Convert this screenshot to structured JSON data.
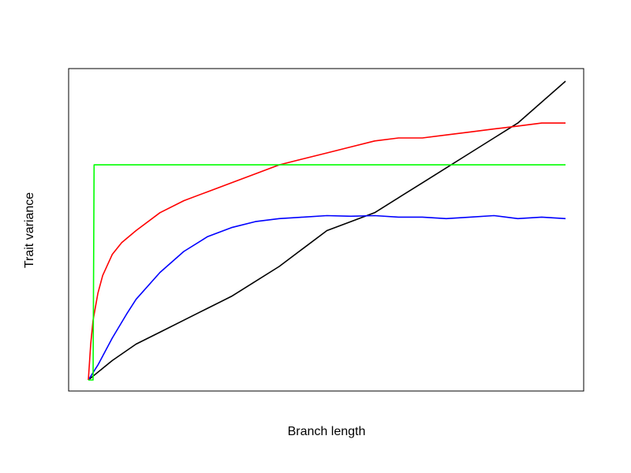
{
  "chart_data": {
    "type": "line",
    "title": "",
    "xlabel": "Branch length",
    "ylabel": "Trait variance",
    "xlim": [
      0,
      1
    ],
    "ylim": [
      0,
      1
    ],
    "grid": false,
    "legend": "none",
    "series": [
      {
        "color": "#000000",
        "x": [
          0,
          0.05,
          0.1,
          0.15,
          0.2,
          0.25,
          0.3,
          0.35,
          0.4,
          0.45,
          0.5,
          0.55,
          0.6,
          0.65,
          0.7,
          0.75,
          0.8,
          0.85,
          0.9,
          0.95,
          1
        ],
        "y": [
          0,
          0.065,
          0.12,
          0.16,
          0.2,
          0.24,
          0.28,
          0.33,
          0.38,
          0.44,
          0.5,
          0.53,
          0.56,
          0.61,
          0.66,
          0.71,
          0.76,
          0.81,
          0.86,
          0.93,
          1.0
        ]
      },
      {
        "color": "#0000ff",
        "x": [
          0,
          0.02,
          0.05,
          0.08,
          0.1,
          0.15,
          0.2,
          0.25,
          0.3,
          0.35,
          0.4,
          0.45,
          0.5,
          0.55,
          0.6,
          0.65,
          0.7,
          0.75,
          0.8,
          0.85,
          0.9,
          0.95,
          1
        ],
        "y": [
          0,
          0.05,
          0.14,
          0.22,
          0.27,
          0.36,
          0.43,
          0.48,
          0.51,
          0.53,
          0.54,
          0.545,
          0.55,
          0.548,
          0.55,
          0.545,
          0.545,
          0.54,
          0.545,
          0.55,
          0.54,
          0.545,
          0.54
        ]
      },
      {
        "color": "#ff0000",
        "x": [
          0,
          0.005,
          0.01,
          0.02,
          0.03,
          0.05,
          0.07,
          0.1,
          0.15,
          0.2,
          0.25,
          0.3,
          0.35,
          0.4,
          0.45,
          0.5,
          0.55,
          0.6,
          0.65,
          0.7,
          0.75,
          0.8,
          0.85,
          0.9,
          0.95,
          1
        ],
        "y": [
          0,
          0.12,
          0.2,
          0.29,
          0.35,
          0.42,
          0.46,
          0.5,
          0.56,
          0.6,
          0.63,
          0.66,
          0.69,
          0.72,
          0.74,
          0.76,
          0.78,
          0.8,
          0.81,
          0.81,
          0.82,
          0.83,
          0.84,
          0.85,
          0.86,
          0.86
        ]
      },
      {
        "color": "#00ff00",
        "x": [
          0,
          0.01,
          0.012,
          0.02,
          1
        ],
        "y": [
          0,
          0,
          0.72,
          0.72,
          0.72
        ]
      }
    ]
  }
}
